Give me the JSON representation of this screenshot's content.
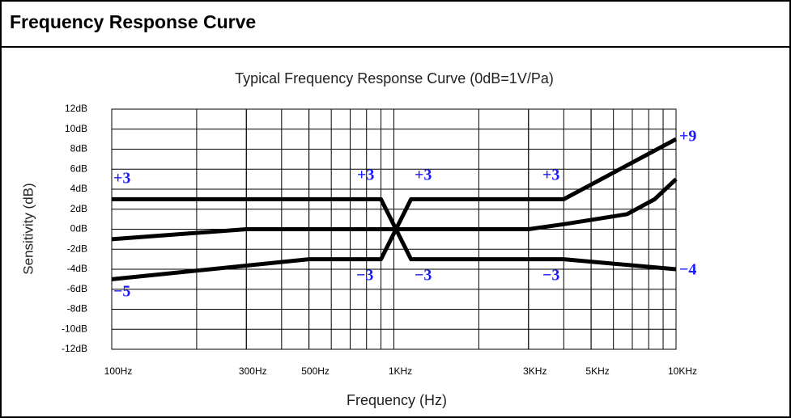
{
  "header": {
    "title": "Frequency Response Curve"
  },
  "chart_data": {
    "type": "line",
    "title": "Typical Frequency Response Curve (0dB=1V/Pa)",
    "xlabel": "Frequency (Hz)",
    "ylabel": "Sensitivity (dB)",
    "log_x": true,
    "grid": true,
    "xlim": [
      100,
      10000
    ],
    "ylim": [
      -12,
      12
    ],
    "xticks": [
      {
        "value": 100,
        "label": "100Hz"
      },
      {
        "value": 300,
        "label": "300Hz"
      },
      {
        "value": 500,
        "label": "500Hz"
      },
      {
        "value": 1000,
        "label": "1KHz"
      },
      {
        "value": 3000,
        "label": "3KHz"
      },
      {
        "value": 5000,
        "label": "5KHz"
      },
      {
        "value": 10000,
        "label": "10KHz"
      }
    ],
    "xgrid": [
      200,
      300,
      400,
      500,
      600,
      700,
      800,
      900,
      1000,
      2000,
      3000,
      4000,
      5000,
      6000,
      7000,
      8000,
      9000
    ],
    "yticks": [
      {
        "value": 12,
        "label": "12dB"
      },
      {
        "value": 10,
        "label": "10dB"
      },
      {
        "value": 8,
        "label": "8dB"
      },
      {
        "value": 6,
        "label": "6dB"
      },
      {
        "value": 4,
        "label": "4dB"
      },
      {
        "value": 2,
        "label": "2dB"
      },
      {
        "value": 0,
        "label": "0dB"
      },
      {
        "value": -2,
        "label": "-2dB"
      },
      {
        "value": -4,
        "label": "-4dB"
      },
      {
        "value": -6,
        "label": "-6dB"
      },
      {
        "value": -8,
        "label": "-8dB"
      },
      {
        "value": -10,
        "label": "-10dB"
      },
      {
        "value": -12,
        "label": "-12dB"
      }
    ],
    "series": [
      {
        "color": "#000000",
        "x": [
          100,
          900,
          1150,
          4000,
          10000
        ],
        "values": [
          3,
          3,
          -3,
          -3,
          -4
        ]
      },
      {
        "color": "#000000",
        "x": [
          100,
          500,
          900,
          1150,
          4000,
          10000
        ],
        "values": [
          -5,
          -3,
          -3,
          3,
          3,
          9
        ]
      },
      {
        "color": "#000000",
        "x": [
          100,
          300,
          3000,
          4000,
          6700,
          8400,
          10000
        ],
        "values": [
          -1,
          0,
          0,
          0.5,
          1.5,
          3,
          5
        ]
      }
    ],
    "annotations": [
      "+3",
      "+3",
      "+3",
      "+3",
      "−3",
      "−3",
      "−3",
      "−5",
      "+9",
      "−4"
    ],
    "annotation_color": "#1a1aff"
  }
}
